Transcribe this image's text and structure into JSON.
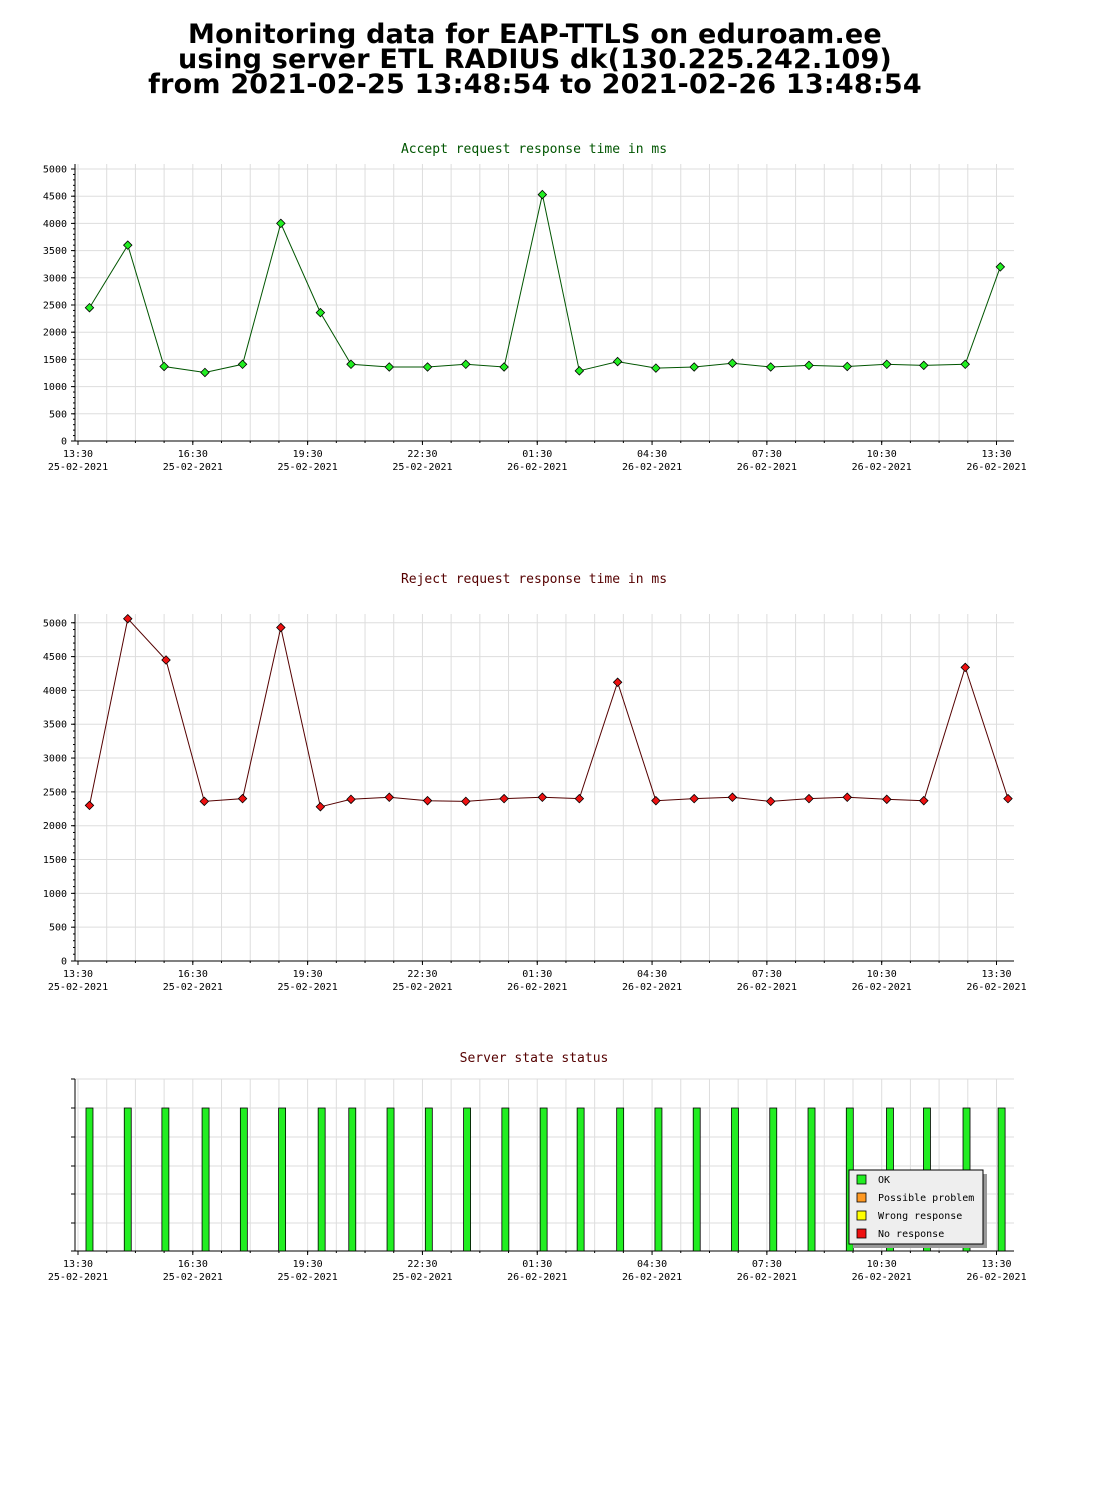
{
  "title": {
    "line1": "Monitoring data for EAP-TTLS on eduroam.ee",
    "line2": "using server ETL RADIUS dk(130.225.242.109)",
    "line3": "from 2021-02-25 13:48:54 to 2021-02-26 13:48:54"
  },
  "x_ticks": [
    {
      "time": "13:30",
      "date": "25-02-2021"
    },
    {
      "time": "16:30",
      "date": "25-02-2021"
    },
    {
      "time": "19:30",
      "date": "25-02-2021"
    },
    {
      "time": "22:30",
      "date": "25-02-2021"
    },
    {
      "time": "01:30",
      "date": "26-02-2021"
    },
    {
      "time": "04:30",
      "date": "26-02-2021"
    },
    {
      "time": "07:30",
      "date": "26-02-2021"
    },
    {
      "time": "10:30",
      "date": "26-02-2021"
    },
    {
      "time": "13:30",
      "date": "26-02-2021"
    }
  ],
  "chart_data": [
    {
      "type": "line",
      "title": "Accept request response time in ms",
      "title_color": "#005500",
      "line_color": "#005500",
      "marker_color": "#22ee22",
      "ylim": [
        0,
        5000
      ],
      "y_ticks": [
        0,
        500,
        1000,
        1500,
        2000,
        2500,
        3000,
        3500,
        4000,
        4500,
        5000
      ],
      "grid": true,
      "x": [
        "2021-02-25 13:48",
        "2021-02-25 14:48",
        "2021-02-25 15:45",
        "2021-02-25 16:49",
        "2021-02-25 17:48",
        "2021-02-25 18:48",
        "2021-02-25 19:50",
        "2021-02-25 20:38",
        "2021-02-25 21:38",
        "2021-02-25 22:38",
        "2021-02-25 23:38",
        "2021-02-26 00:38",
        "2021-02-26 01:38",
        "2021-02-26 02:36",
        "2021-02-26 03:36",
        "2021-02-26 04:36",
        "2021-02-26 05:36",
        "2021-02-26 06:36",
        "2021-02-26 07:36",
        "2021-02-26 08:36",
        "2021-02-26 09:36",
        "2021-02-26 10:38",
        "2021-02-26 11:36",
        "2021-02-26 12:41",
        "2021-02-26 13:36"
      ],
      "values": [
        2450,
        3600,
        1370,
        1260,
        1410,
        4000,
        2360,
        1410,
        1360,
        1360,
        1410,
        1360,
        4530,
        1290,
        1460,
        1340,
        1360,
        1430,
        1360,
        1390,
        1370,
        1410,
        1390,
        1410,
        3200
      ]
    },
    {
      "type": "line",
      "title": "Reject request response time in ms",
      "title_color": "#550000",
      "line_color": "#550000",
      "marker_color": "#ee1111",
      "ylim": [
        0,
        5100
      ],
      "y_ticks": [
        0,
        500,
        1000,
        1500,
        2000,
        2500,
        3000,
        3500,
        4000,
        4500,
        5000
      ],
      "grid": true,
      "x": [
        "2021-02-25 13:48",
        "2021-02-25 14:48",
        "2021-02-25 15:48",
        "2021-02-25 16:48",
        "2021-02-25 17:48",
        "2021-02-25 18:48",
        "2021-02-25 19:50",
        "2021-02-25 20:38",
        "2021-02-25 21:38",
        "2021-02-25 22:38",
        "2021-02-25 23:38",
        "2021-02-26 00:38",
        "2021-02-26 01:38",
        "2021-02-26 02:36",
        "2021-02-26 03:36",
        "2021-02-26 04:36",
        "2021-02-26 05:36",
        "2021-02-26 06:36",
        "2021-02-26 07:36",
        "2021-02-26 08:36",
        "2021-02-26 09:36",
        "2021-02-26 10:38",
        "2021-02-26 11:36",
        "2021-02-26 12:41",
        "2021-02-26 13:48"
      ],
      "values": [
        2300,
        5060,
        4450,
        2360,
        2400,
        4930,
        2280,
        2390,
        2420,
        2370,
        2360,
        2400,
        2420,
        2400,
        4120,
        2370,
        2400,
        2420,
        2360,
        2400,
        2420,
        2390,
        2370,
        4340,
        2400
      ]
    },
    {
      "type": "bar",
      "title": "Server state status",
      "title_color": "#550000",
      "grid": true,
      "x": [
        "2021-02-25 13:48",
        "2021-02-25 14:48",
        "2021-02-25 15:47",
        "2021-02-25 16:50",
        "2021-02-25 17:50",
        "2021-02-25 18:50",
        "2021-02-25 19:52",
        "2021-02-25 20:40",
        "2021-02-25 21:40",
        "2021-02-25 22:40",
        "2021-02-25 23:40",
        "2021-02-26 00:40",
        "2021-02-26 01:40",
        "2021-02-26 02:38",
        "2021-02-26 03:40",
        "2021-02-26 04:40",
        "2021-02-26 05:40",
        "2021-02-26 06:40",
        "2021-02-26 07:40",
        "2021-02-26 08:40",
        "2021-02-26 09:40",
        "2021-02-26 10:43",
        "2021-02-26 11:41",
        "2021-02-26 12:43",
        "2021-02-26 13:38"
      ],
      "status": [
        "OK",
        "OK",
        "OK",
        "OK",
        "OK",
        "OK",
        "OK",
        "OK",
        "OK",
        "OK",
        "OK",
        "OK",
        "OK",
        "OK",
        "OK",
        "OK",
        "OK",
        "OK",
        "OK",
        "OK",
        "OK",
        "OK",
        "OK",
        "OK",
        "OK"
      ],
      "legend_position": "bottom-right",
      "legend": [
        {
          "label": "OK",
          "color": "#22ee22"
        },
        {
          "label": "Possible problem",
          "color": "#ff9922"
        },
        {
          "label": "Wrong response",
          "color": "#ffff00"
        },
        {
          "label": "No response",
          "color": "#ee1111"
        }
      ]
    }
  ]
}
